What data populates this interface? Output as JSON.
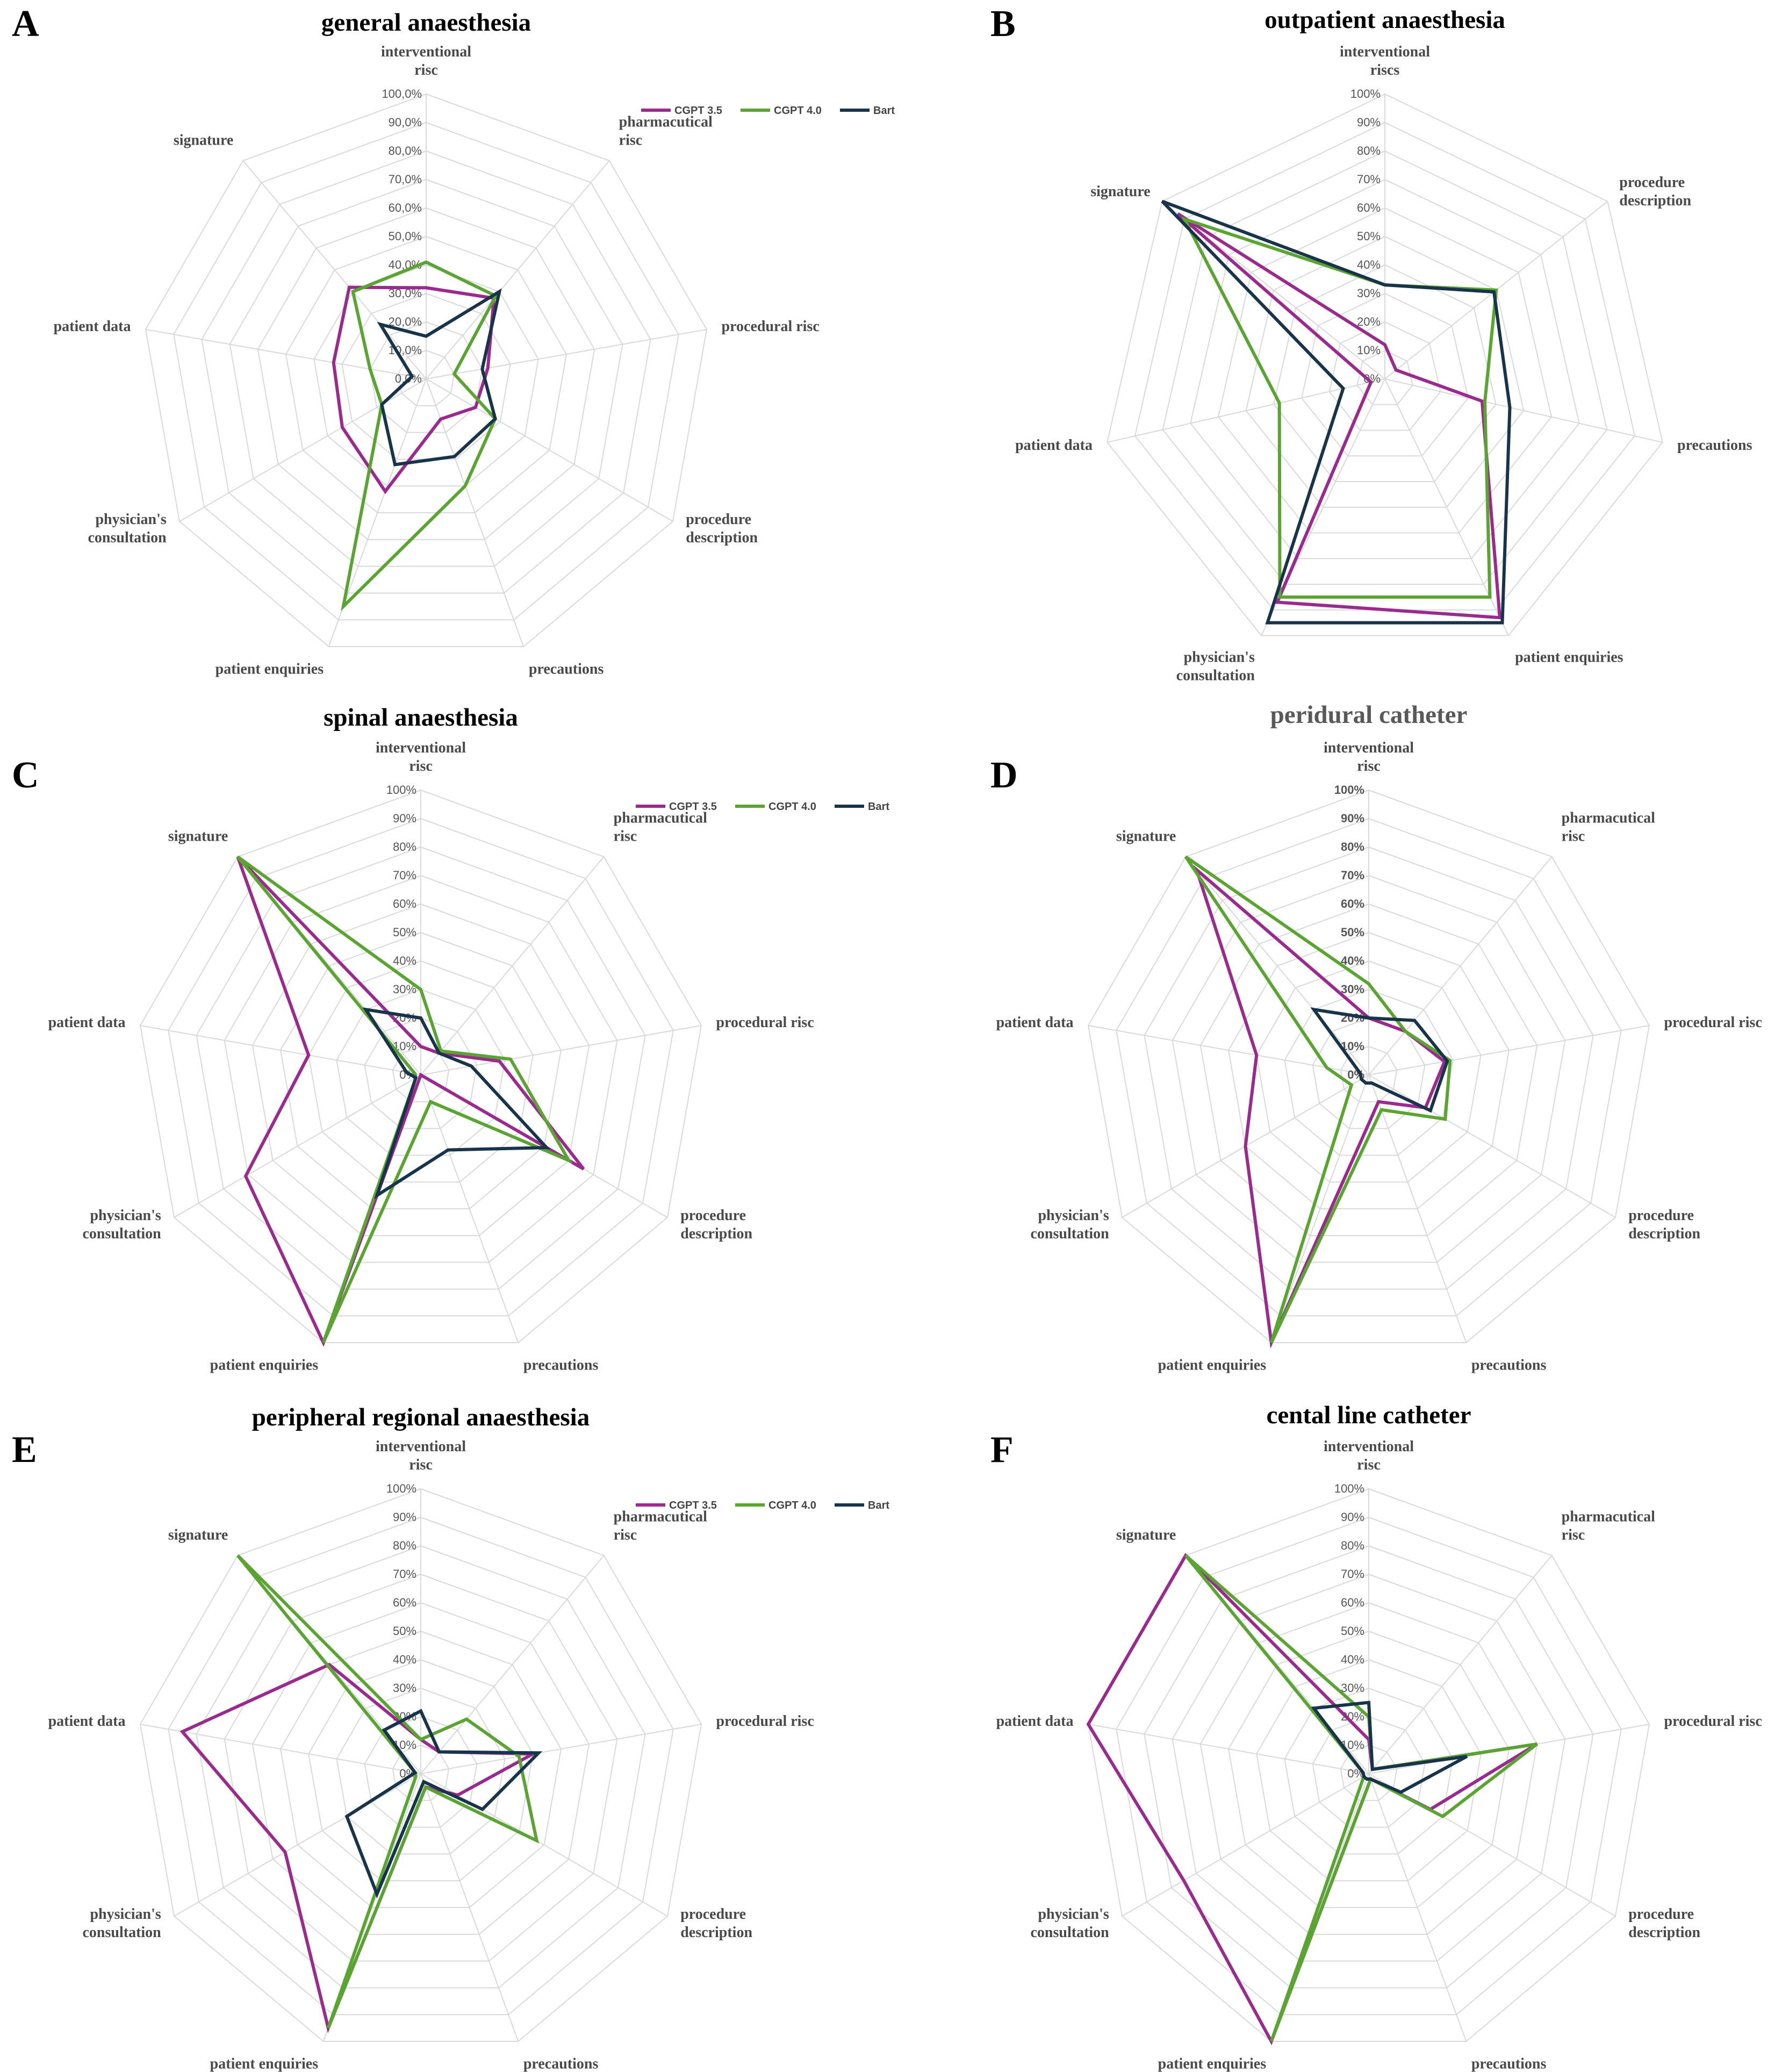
{
  "colors": {
    "cgpt35": "#9b2a8f",
    "cgpt40": "#5aa532",
    "bart": "#17344a",
    "grid": "#d9d9d9"
  },
  "chart_data": [
    {
      "type": "radar",
      "panel": "A",
      "title": "general anaesthesia",
      "categories": [
        "interventional\nrisc",
        "pharmacutical\nrisc",
        "procedural risc",
        "procedure\ndescription",
        "precautions",
        "patient enquiries",
        "physician's\nconsultation",
        "patient data",
        "signature"
      ],
      "tick_labels": [
        "0,0%",
        "10,0%",
        "20,0%",
        "30,0%",
        "40,0%",
        "50,0%",
        "60,0%",
        "70,0%",
        "80,0%",
        "90,0%",
        "100,0%"
      ],
      "legend": true,
      "series": [
        {
          "name": "CGPT 3.5",
          "values": [
            32,
            37,
            22,
            20,
            15,
            42,
            34,
            33,
            42
          ]
        },
        {
          "name": "CGPT 4.0",
          "values": [
            41,
            38,
            10,
            28,
            40,
            85,
            18,
            20,
            40
          ]
        },
        {
          "name": "Bart",
          "values": [
            15,
            40,
            20,
            28,
            29,
            32,
            18,
            5,
            25
          ]
        }
      ]
    },
    {
      "type": "radar",
      "panel": "B",
      "title": "outpatient anaesthesia",
      "categories": [
        "interventional\nriscs",
        "procedure\ndescription",
        "precautions",
        "patient enquiries",
        "physician's\nconsultation",
        "patient data",
        "signature"
      ],
      "tick_labels": [
        "0%",
        "10%",
        "20%",
        "30%",
        "40%",
        "50%",
        "60%",
        "70%",
        "80%",
        "90%",
        "100%"
      ],
      "legend": false,
      "series": [
        {
          "name": "CGPT 3.5",
          "values": [
            12,
            5,
            35,
            93,
            87,
            5,
            93
          ]
        },
        {
          "name": "CGPT 4.0",
          "values": [
            33,
            50,
            36,
            85,
            85,
            38,
            90
          ]
        },
        {
          "name": "Bart",
          "values": [
            33,
            49,
            45,
            95,
            95,
            15,
            100
          ]
        }
      ]
    },
    {
      "type": "radar",
      "panel": "C",
      "title": "spinal anaesthesia",
      "categories": [
        "interventional\nrisc",
        "pharmacutical\nrisc",
        "procedural risc",
        "procedure\ndescription",
        "precautions",
        "patient enquiries",
        "physician's\nconsultation",
        "patient data",
        "signature"
      ],
      "tick_labels": [
        "0%",
        "10%",
        "20%",
        "30%",
        "40%",
        "50%",
        "60%",
        "70%",
        "80%",
        "90%",
        "100%"
      ],
      "legend": true,
      "series": [
        {
          "name": "CGPT 3.5",
          "values": [
            10,
            10,
            28,
            66,
            0,
            100,
            71,
            40,
            100
          ]
        },
        {
          "name": "CGPT 4.0",
          "values": [
            30,
            11,
            32,
            60,
            10,
            100,
            2,
            2,
            100
          ]
        },
        {
          "name": "Bart",
          "values": [
            20,
            10,
            18,
            51,
            28,
            45,
            2,
            5,
            30
          ]
        }
      ]
    },
    {
      "type": "radar",
      "panel": "D",
      "title": "peridural catheter",
      "categories": [
        "interventional\nrisc",
        "pharmacutical\nrisc",
        "procedural risc",
        "procedure\ndescription",
        "precautions",
        "patient enquiries",
        "physician's\nconsultation",
        "patient data",
        "signature"
      ],
      "tick_labels": [
        "0%",
        "10%",
        "20%",
        "30%",
        "40%",
        "50%",
        "60%",
        "70%",
        "80%",
        "90%",
        "100%"
      ],
      "legend": false,
      "series": [
        {
          "name": "CGPT 3.5",
          "values": [
            20,
            20,
            27,
            23,
            10,
            100,
            50,
            40,
            94
          ]
        },
        {
          "name": "CGPT 4.0",
          "values": [
            32,
            20,
            29,
            31,
            13,
            100,
            7,
            15,
            100
          ]
        },
        {
          "name": "Bart",
          "values": [
            20,
            25,
            28,
            25,
            3,
            3,
            3,
            3,
            30
          ]
        }
      ]
    },
    {
      "type": "radar",
      "panel": "E",
      "title": "peripheral regional anaesthesia",
      "categories": [
        "interventional\nrisc",
        "pharmacutical\nrisc",
        "procedural risc",
        "procedure\ndescription",
        "precautions",
        "patient enquiries",
        "physician's\nconsultation",
        "patient data",
        "signature"
      ],
      "tick_labels": [
        "0%",
        "10%",
        "20%",
        "30%",
        "40%",
        "50%",
        "60%",
        "70%",
        "80%",
        "90%",
        "100%"
      ],
      "legend": true,
      "series": [
        {
          "name": "CGPT 3.5",
          "values": [
            12,
            10,
            40,
            15,
            5,
            95,
            55,
            85,
            50
          ]
        },
        {
          "name": "CGPT 4.0",
          "values": [
            12,
            25,
            35,
            47,
            5,
            95,
            2,
            2,
            100
          ]
        },
        {
          "name": "Bart",
          "values": [
            22,
            10,
            42,
            25,
            3,
            45,
            30,
            2,
            20
          ]
        }
      ]
    },
    {
      "type": "radar",
      "panel": "F",
      "title": "cental line catheter",
      "categories": [
        "interventional\nrisc",
        "pharmacutical\nrisc",
        "procedural risc",
        "procedure\ndescription",
        "precautions",
        "patient enquiries",
        "physician's\nconsultation",
        "patient data",
        "signature"
      ],
      "tick_labels": [
        "0%",
        "10%",
        "20%",
        "30%",
        "40%",
        "50%",
        "60%",
        "70%",
        "80%",
        "90%",
        "100%"
      ],
      "legend": false,
      "series": [
        {
          "name": "CGPT 3.5",
          "values": [
            12,
            2,
            60,
            25,
            2,
            100,
            75,
            100,
            100
          ]
        },
        {
          "name": "CGPT 4.0",
          "values": [
            20,
            2,
            60,
            30,
            2,
            100,
            2,
            2,
            100
          ]
        },
        {
          "name": "Bart",
          "values": [
            25,
            2,
            35,
            13,
            2,
            2,
            2,
            2,
            30
          ]
        }
      ]
    }
  ]
}
